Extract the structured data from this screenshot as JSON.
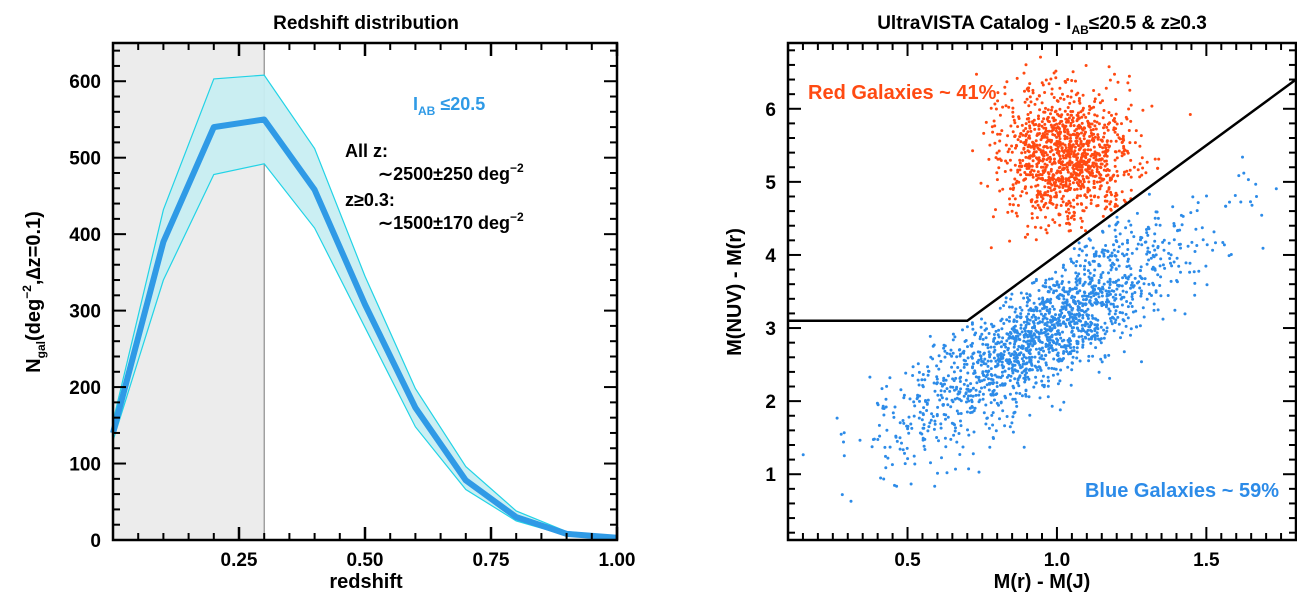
{
  "colors": {
    "band_fill": "#c8eef2",
    "band_edge": "#22d3e6",
    "median_line": "#2f9ae6",
    "shade": "#ececec",
    "red_galaxies": "#ff4a12",
    "blue_galaxies": "#2c8be8",
    "divider": "#000000"
  },
  "chart_data": [
    {
      "type": "area",
      "title": "Redshift distribution",
      "xlabel": "redshift",
      "ylabel": {
        "pre": "N",
        "sub": "gal",
        "mid": "(deg",
        "sup": "−2",
        "post": ",∆z=0.1)"
      },
      "xlim": [
        0.0,
        1.0
      ],
      "ylim": [
        0,
        650
      ],
      "xticks": [
        0.25,
        0.5,
        0.75,
        1.0
      ],
      "xtick_labels": [
        "0.25",
        "0.50",
        "0.75",
        "1.00"
      ],
      "yticks": [
        0,
        100,
        200,
        300,
        400,
        500,
        600
      ],
      "ytick_labels": [
        "0",
        "100",
        "200",
        "300",
        "400",
        "500",
        "600"
      ],
      "shaded_region": [
        0.0,
        0.3
      ],
      "vline": 0.3,
      "median": {
        "x": [
          0.0,
          0.1,
          0.2,
          0.3,
          0.4,
          0.5,
          0.6,
          0.7,
          0.8,
          0.9,
          1.0
        ],
        "y": [
          140,
          390,
          540,
          550,
          458,
          308,
          173,
          78,
          30,
          8,
          3
        ]
      },
      "band": {
        "x": [
          0.0,
          0.1,
          0.2,
          0.3,
          0.4,
          0.5,
          0.6,
          0.7,
          0.8,
          0.9,
          1.0
        ],
        "lower": [
          130,
          340,
          478,
          492,
          408,
          278,
          148,
          66,
          25,
          6,
          2
        ],
        "upper": [
          155,
          432,
          603,
          608,
          512,
          345,
          198,
          96,
          38,
          11,
          5
        ]
      },
      "annotations": {
        "cut": {
          "pre": "I",
          "sub": "AB",
          "post": " ≤20.5"
        },
        "allz_label": "All z:",
        "allz_value": {
          "pre": "∼2500±250 deg",
          "sup": "−2"
        },
        "zcut_label": "z≥0.3:",
        "zcut_value": {
          "pre": "∼1500±170 deg",
          "sup": "−2"
        }
      }
    },
    {
      "type": "scatter",
      "title": {
        "pre": "UltraVISTA Catalog  -  I",
        "sub": "AB",
        "post": "≤20.5 & z≥0.3"
      },
      "xlabel": "M(r) - M(J)",
      "ylabel": "M(NUV) - M(r)",
      "xlim": [
        0.1,
        1.8
      ],
      "ylim": [
        0.1,
        6.9
      ],
      "xticks": [
        0.5,
        1.0,
        1.5
      ],
      "xtick_labels": [
        "0.5",
        "1.0",
        "1.5"
      ],
      "yticks": [
        1,
        2,
        3,
        4,
        5,
        6
      ],
      "ytick_labels": [
        "1",
        "2",
        "3",
        "4",
        "5",
        "6"
      ],
      "divider": {
        "x": [
          0.1,
          0.7,
          1.8
        ],
        "y": [
          3.1,
          3.1,
          6.4
        ]
      },
      "series": [
        {
          "label": "Red Galaxies ~ 41%",
          "fraction": 0.41
        },
        {
          "label": "Blue Galaxies ~ 59%",
          "fraction": 0.59
        }
      ]
    }
  ]
}
